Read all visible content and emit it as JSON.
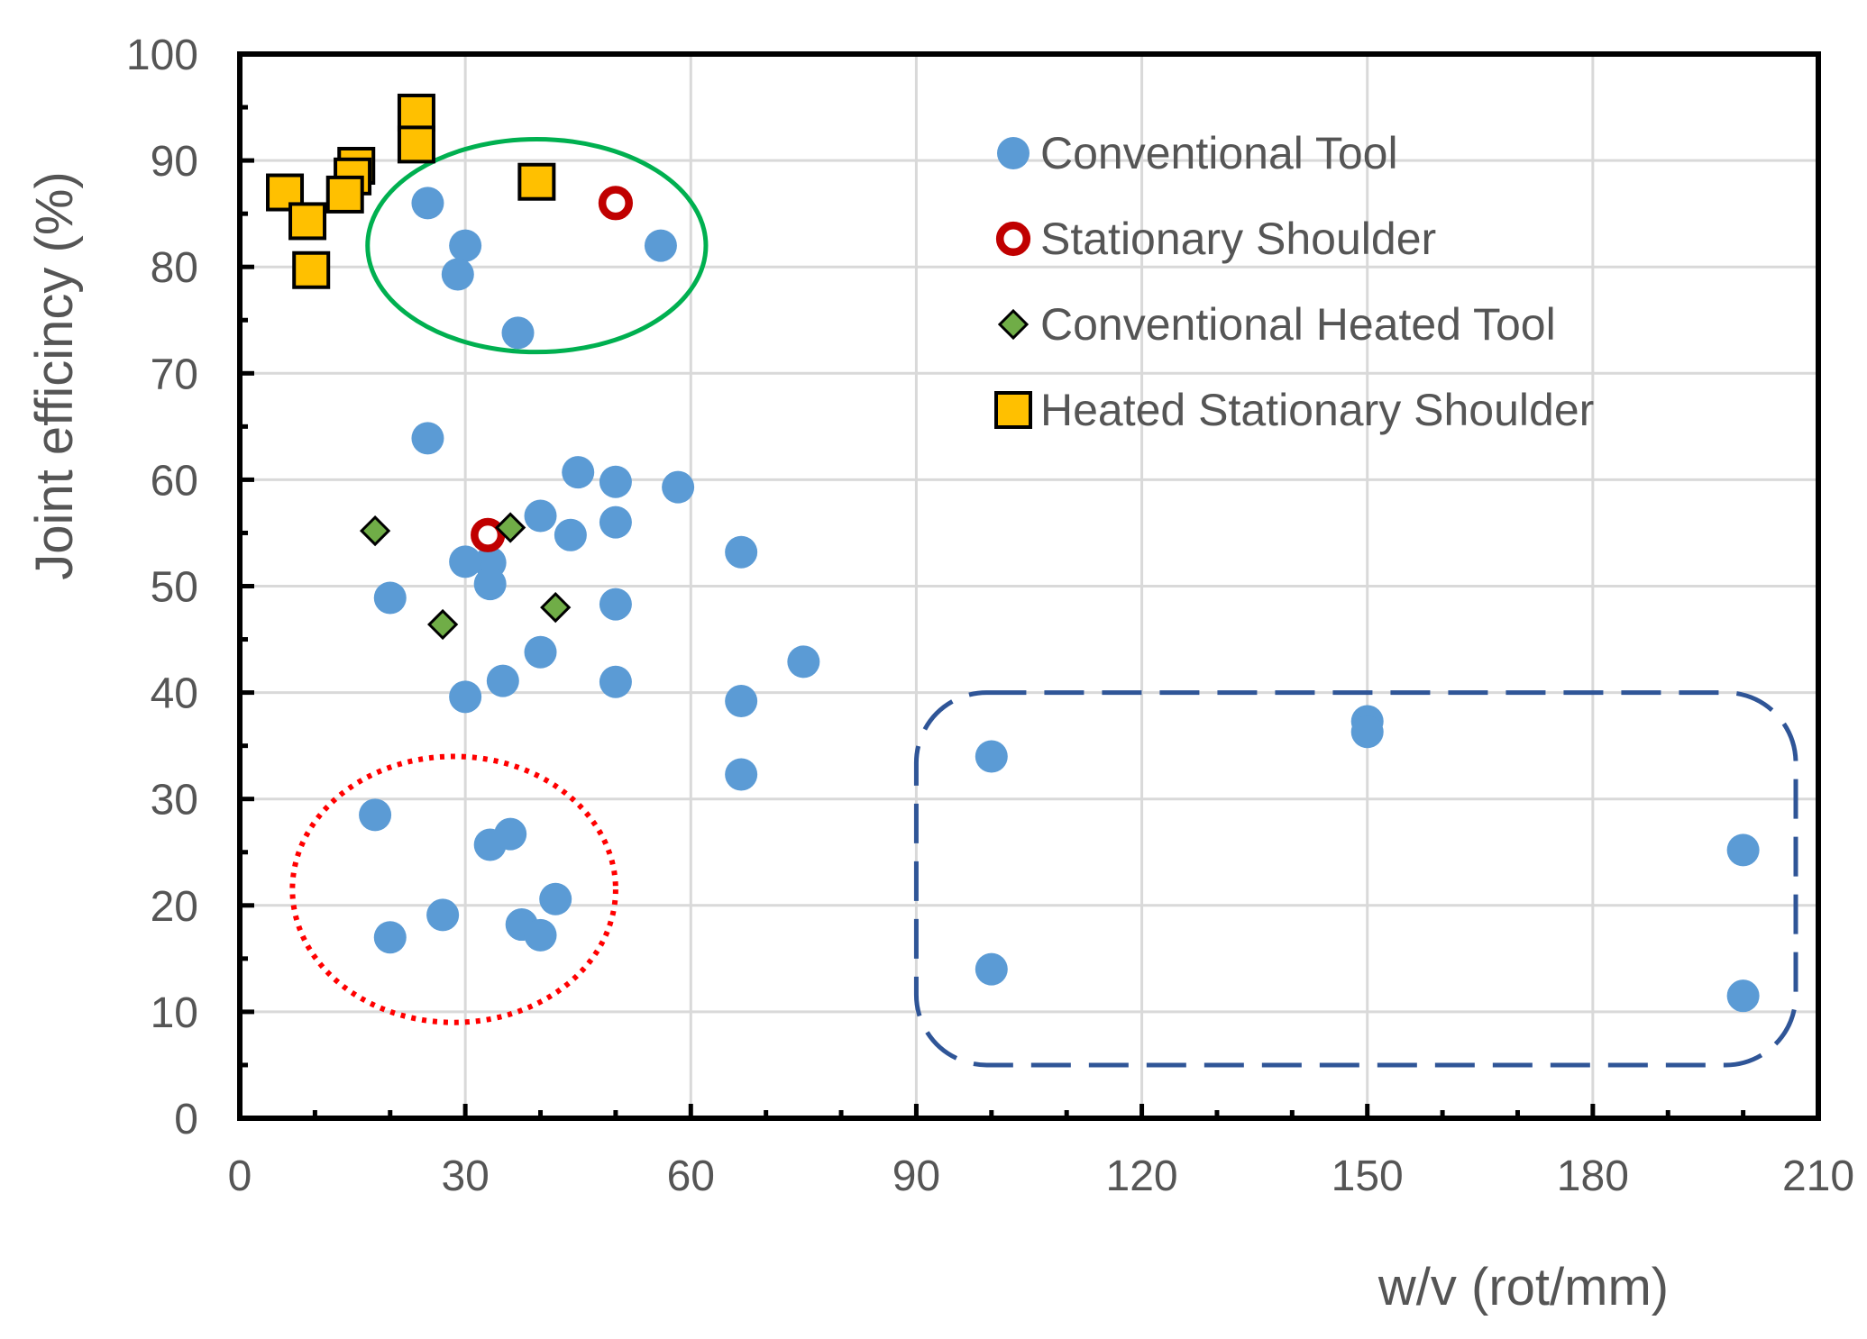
{
  "chart_data": {
    "type": "scatter",
    "title": "",
    "xlabel": "w/v (rot/mm)",
    "ylabel": "Joint efficincy (%)",
    "xlim": [
      0,
      210
    ],
    "ylim": [
      0,
      100
    ],
    "xticks": [
      0,
      30,
      60,
      90,
      120,
      150,
      180,
      210
    ],
    "yticks": [
      0,
      10,
      20,
      30,
      40,
      50,
      60,
      70,
      80,
      90,
      100
    ],
    "xtick_labels": [
      "0",
      "30",
      "60",
      "90",
      "120",
      "150",
      "180",
      "210"
    ],
    "ytick_labels": [
      "0",
      "10",
      "20",
      "30",
      "40",
      "50",
      "60",
      "70",
      "80",
      "90",
      "100"
    ],
    "grid": true,
    "legend_position": "top-right",
    "series": [
      {
        "name": "Conventional Tool",
        "marker": "circle",
        "color": "#5B9BD5",
        "points": [
          [
            25,
            86
          ],
          [
            30,
            82
          ],
          [
            29,
            79.3
          ],
          [
            37,
            73.8
          ],
          [
            56,
            82
          ],
          [
            25,
            63.9
          ],
          [
            45,
            60.7
          ],
          [
            50,
            59.8
          ],
          [
            58.3,
            59.3
          ],
          [
            40,
            56.6
          ],
          [
            44,
            54.8
          ],
          [
            50,
            56
          ],
          [
            33.3,
            52.2
          ],
          [
            30,
            52.3
          ],
          [
            33.3,
            50.2
          ],
          [
            20,
            48.9
          ],
          [
            50,
            48.3
          ],
          [
            66.7,
            53.2
          ],
          [
            40,
            43.8
          ],
          [
            35,
            41.1
          ],
          [
            50,
            41
          ],
          [
            30,
            39.6
          ],
          [
            66.7,
            39.2
          ],
          [
            75,
            42.9
          ],
          [
            66.7,
            32.3
          ],
          [
            18,
            28.5
          ],
          [
            33.3,
            25.7
          ],
          [
            36,
            26.7
          ],
          [
            42,
            20.6
          ],
          [
            27,
            19.1
          ],
          [
            37.5,
            18.2
          ],
          [
            40,
            17.2
          ],
          [
            20,
            17
          ],
          [
            100,
            34
          ],
          [
            150,
            37.3
          ],
          [
            150,
            36.3
          ],
          [
            200,
            25.2
          ],
          [
            100,
            14
          ],
          [
            200,
            11.5
          ]
        ]
      },
      {
        "name": "Stationary Shoulder",
        "marker": "ring",
        "color": "#C00000",
        "points": [
          [
            50,
            86
          ],
          [
            33,
            54.8
          ]
        ]
      },
      {
        "name": "Conventional Heated Tool",
        "marker": "diamond",
        "color": "#70AD47",
        "points": [
          [
            18,
            55.2
          ],
          [
            36,
            55.5
          ],
          [
            27,
            46.4
          ],
          [
            42,
            48
          ]
        ]
      },
      {
        "name": "Heated Stationary Shoulder",
        "marker": "square",
        "color": "#FFC000",
        "points": [
          [
            23.5,
            94.5
          ],
          [
            23.5,
            91.5
          ],
          [
            15.5,
            89.5
          ],
          [
            15,
            88.5
          ],
          [
            14,
            86.8
          ],
          [
            6,
            87
          ],
          [
            9,
            84.3
          ],
          [
            9.5,
            79.7
          ],
          [
            39.5,
            88
          ]
        ]
      }
    ],
    "annotations": [
      {
        "shape": "ellipse",
        "style": "solid",
        "color": "#00B050",
        "cx": 39.5,
        "cy": 82,
        "rx": 22.5,
        "ry": 10
      },
      {
        "shape": "ellipse",
        "style": "dotted",
        "color": "#FF0000",
        "cx": 28.5,
        "cy": 21.5,
        "rx": 21.5,
        "ry": 12.5
      },
      {
        "shape": "rounded-rect",
        "style": "dashed",
        "color": "#2F5597",
        "x0": 90,
        "x1": 207,
        "y0": 5,
        "y1": 40
      }
    ]
  }
}
